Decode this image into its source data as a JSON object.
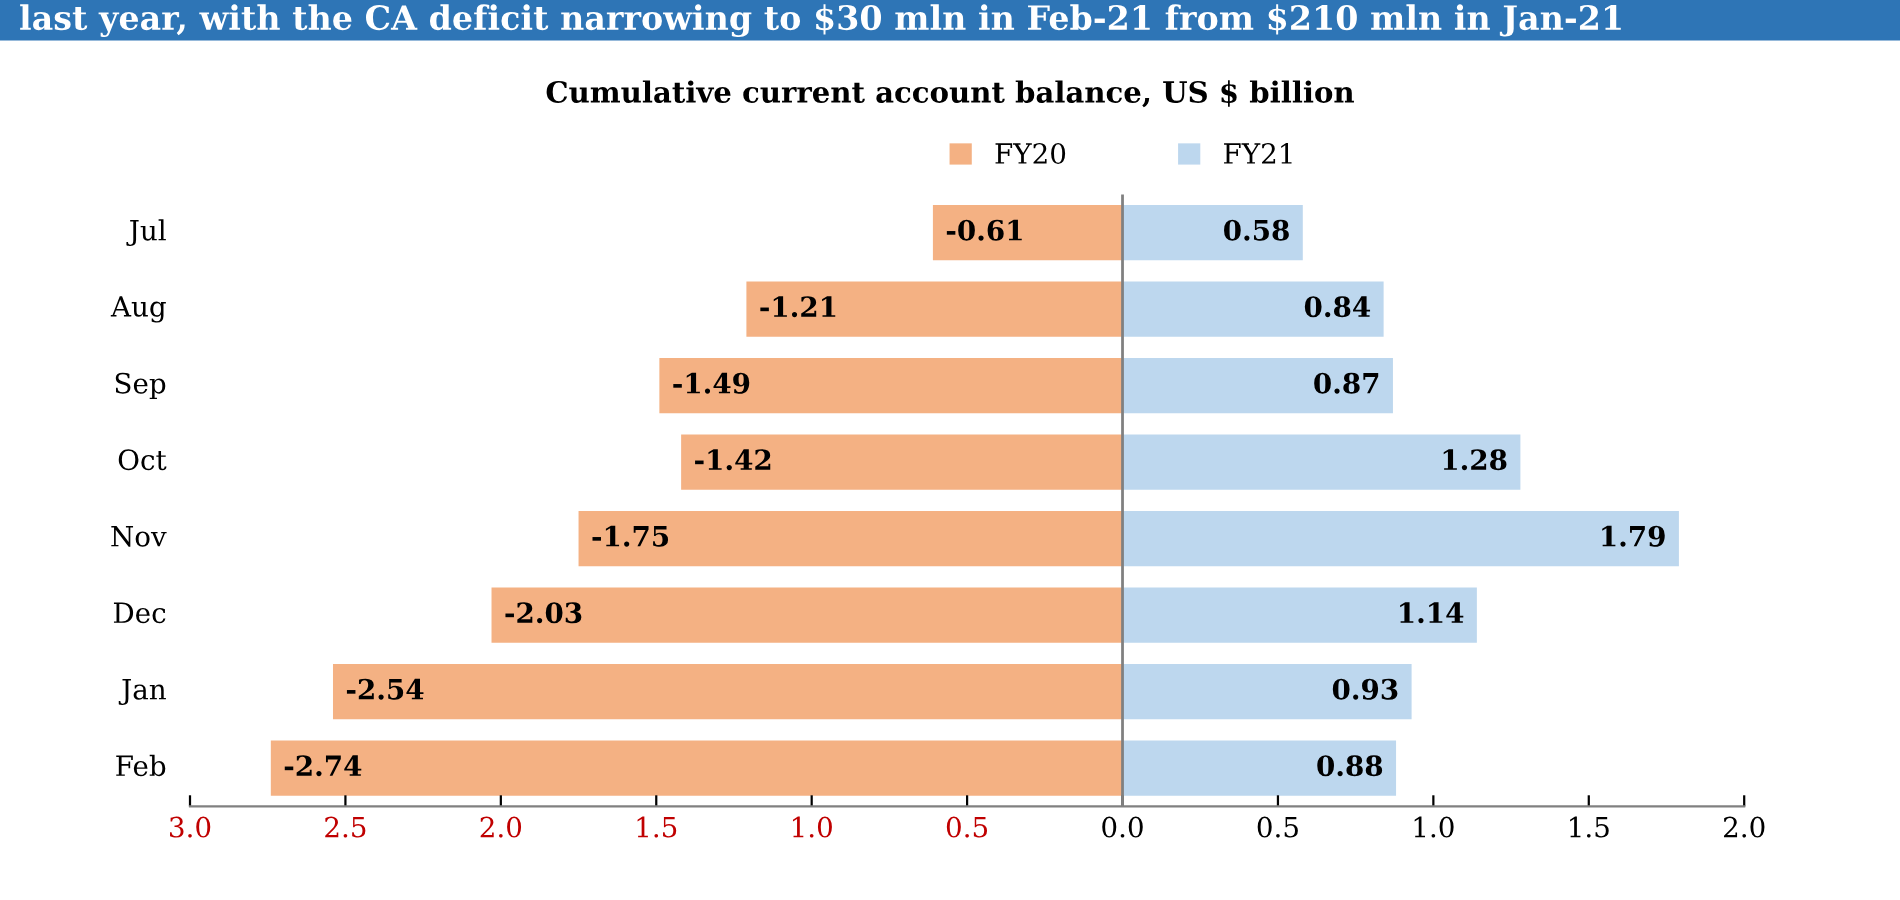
{
  "chart_data": {
    "type": "bar",
    "orientation": "horizontal",
    "title": "last year, with the CA deficit narrowing to $30 mln in Feb-21 from $210 mln in Jan-21",
    "subtitle": "Cumulative current account balance, US $ billion",
    "categories": [
      "Jul",
      "Aug",
      "Sep",
      "Oct",
      "Nov",
      "Dec",
      "Jan",
      "Feb"
    ],
    "series": [
      {
        "name": "FY20",
        "color": "#f4b183",
        "values": [
          -0.61,
          -1.21,
          -1.49,
          -1.42,
          -1.75,
          -2.03,
          -2.54,
          -2.74
        ]
      },
      {
        "name": "FY21",
        "color": "#bdd7ee",
        "values": [
          0.58,
          0.84,
          0.87,
          1.28,
          1.79,
          1.14,
          0.93,
          0.88
        ]
      }
    ],
    "xlim": [
      -3,
      2
    ],
    "xticks": [
      {
        "value": -3,
        "label": "3.0"
      },
      {
        "value": -2.5,
        "label": "2.5"
      },
      {
        "value": -2,
        "label": "2.0"
      },
      {
        "value": -1.5,
        "label": "1.5"
      },
      {
        "value": -1,
        "label": "1.0"
      },
      {
        "value": -0.5,
        "label": "0.5"
      },
      {
        "value": 0,
        "label": "0.0"
      },
      {
        "value": 0.5,
        "label": "0.5"
      },
      {
        "value": 1,
        "label": "1.0"
      },
      {
        "value": 1.5,
        "label": "1.5"
      },
      {
        "value": 2,
        "label": "2.0"
      }
    ],
    "stacked": true,
    "ref_lines": [
      {
        "axis": "x",
        "value": 0,
        "color": "#808080"
      }
    ],
    "data_labels": true,
    "legend": "top",
    "grid": false
  }
}
